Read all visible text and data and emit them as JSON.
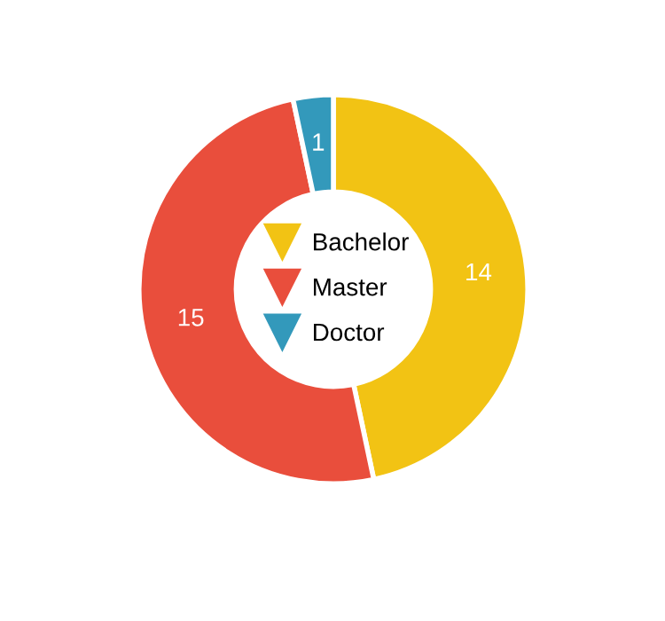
{
  "chart_data": {
    "type": "donut",
    "categories": [
      "Bachelor",
      "Master",
      "Doctor"
    ],
    "values": [
      14,
      15,
      1
    ],
    "colors": [
      "#f2c314",
      "#e94e3c",
      "#3399bb"
    ],
    "data_labels": true,
    "legend": "center",
    "marker": "triangle"
  }
}
